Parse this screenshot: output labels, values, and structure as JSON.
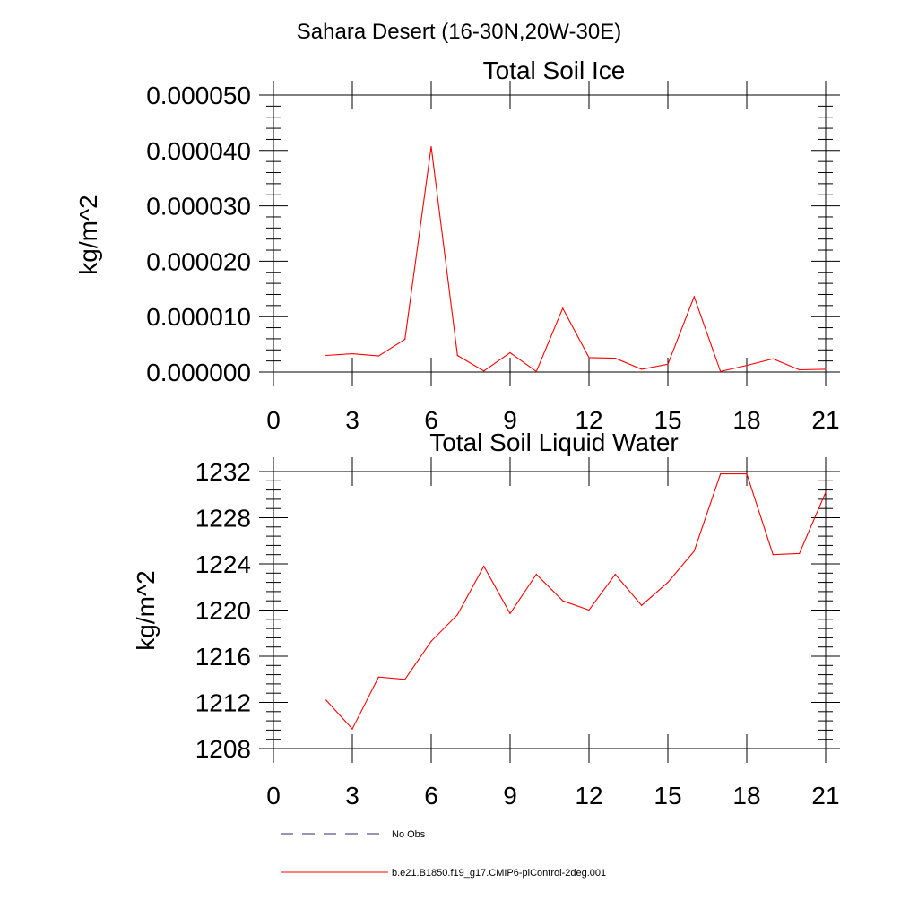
{
  "figure_title": "Sahara Desert (16-30N,20W-30E)",
  "legend": [
    {
      "label": "No Obs",
      "style": "dashed",
      "color": "#2b2b6b"
    },
    {
      "label": "b.e21.B1850.f19_g17.CMIP6-piControl-2deg.001",
      "style": "solid",
      "color": "#ff0000"
    }
  ],
  "chart_data": [
    {
      "type": "line",
      "title": "Total Soil Ice",
      "xlabel": "",
      "ylabel": "kg/m^2",
      "xlim": [
        0,
        21
      ],
      "ylim": [
        0,
        5e-05
      ],
      "xticks": [
        0,
        3,
        6,
        9,
        12,
        15,
        18,
        21
      ],
      "xtick_labels": [
        "0",
        "3",
        "6",
        "9",
        "12",
        "15",
        "18",
        "21"
      ],
      "yticks": [
        0,
        1e-05,
        2e-05,
        3e-05,
        4e-05,
        5e-05
      ],
      "ytick_labels": [
        "0.000000",
        "0.000010",
        "0.000020",
        "0.000030",
        "0.000040",
        "0.000050"
      ],
      "series": [
        {
          "name": "b.e21.B1850.f19_g17.CMIP6-piControl-2deg.001",
          "color": "#ff0000",
          "x": [
            2,
            3,
            4,
            5,
            6,
            7,
            8,
            9,
            10,
            11,
            12,
            13,
            14,
            15,
            16,
            17,
            18,
            19,
            20,
            21
          ],
          "y": [
            3e-06,
            3.3e-06,
            2.9e-06,
            5.9e-06,
            4.07e-05,
            3e-06,
            2e-07,
            3.5e-06,
            1e-07,
            1.15e-05,
            2.6e-06,
            2.5e-06,
            5e-07,
            1.4e-06,
            1.36e-05,
            1e-07,
            1.2e-06,
            2.4e-06,
            4e-07,
            5e-07
          ]
        }
      ]
    },
    {
      "type": "line",
      "title": "Total Soil Liquid Water",
      "xlabel": "",
      "ylabel": "kg/m^2",
      "xlim": [
        0,
        21
      ],
      "ylim": [
        1208,
        1232
      ],
      "xticks": [
        0,
        3,
        6,
        9,
        12,
        15,
        18,
        21
      ],
      "xtick_labels": [
        "0",
        "3",
        "6",
        "9",
        "12",
        "15",
        "18",
        "21"
      ],
      "yticks": [
        1208,
        1212,
        1216,
        1220,
        1224,
        1228,
        1232
      ],
      "ytick_labels": [
        "1208",
        "1212",
        "1216",
        "1220",
        "1224",
        "1228",
        "1232"
      ],
      "series": [
        {
          "name": "b.e21.B1850.f19_g17.CMIP6-piControl-2deg.001",
          "color": "#ff0000",
          "x": [
            2,
            3,
            4,
            5,
            6,
            7,
            8,
            9,
            10,
            11,
            12,
            13,
            14,
            15,
            16,
            17,
            18,
            19,
            20,
            21
          ],
          "y": [
            1212.2,
            1209.7,
            1214.2,
            1214.0,
            1217.3,
            1219.6,
            1223.8,
            1219.7,
            1223.1,
            1220.8,
            1220.0,
            1223.1,
            1220.4,
            1222.4,
            1225.1,
            1231.8,
            1231.8,
            1224.8,
            1224.9,
            1230.2
          ]
        }
      ]
    }
  ]
}
